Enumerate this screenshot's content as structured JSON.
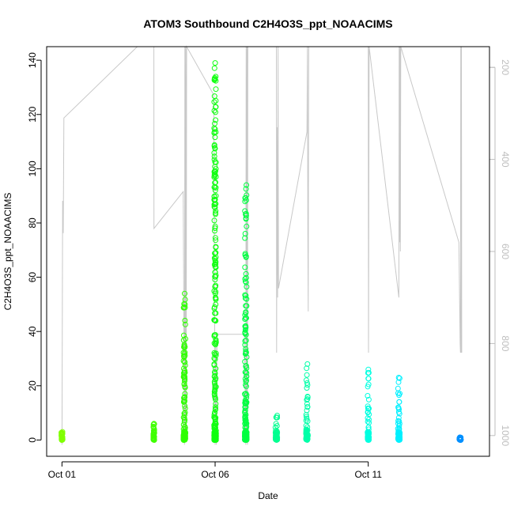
{
  "chart_data": {
    "type": "scatter",
    "title": "ATOM3 Southbound C2H4O3S_ppt_NOAACIMS",
    "xlabel": "Date",
    "ylabel": "C2H4O3S_ppt_NOAACIMS",
    "x_axis": {
      "kind": "date",
      "range": [
        "2017-09-30T12:00",
        "2017-10-14T23:00"
      ],
      "ticks": [
        {
          "value": "2017-10-01",
          "label": "Oct 01"
        },
        {
          "value": "2017-10-06",
          "label": "Oct 06"
        },
        {
          "value": "2017-10-11",
          "label": "Oct 11"
        }
      ]
    },
    "y_axis": {
      "range": [
        -6,
        145
      ],
      "ticks": [
        0,
        20,
        40,
        60,
        80,
        100,
        120,
        140
      ]
    },
    "y2_axis": {
      "label": "",
      "inverted": true,
      "range": [
        1045,
        155
      ],
      "ticks": [
        200,
        400,
        600,
        800,
        1000
      ],
      "color": "#bebebe"
    },
    "grid": false,
    "legend": "none",
    "series": [
      {
        "color_scale": "time (green to blue)",
        "clusters": [
          {
            "date": "2017-10-01T00:00",
            "spread_h": 1.0,
            "max": 3,
            "color": "#80ff00"
          },
          {
            "date": "2017-10-04T00:00",
            "spread_h": 0.8,
            "max": 6,
            "color": "#40ff00"
          },
          {
            "date": "2017-10-05T00:00",
            "spread_h": 1.5,
            "max": 54,
            "color": "#2eff00"
          },
          {
            "date": "2017-10-06T00:00",
            "spread_h": 1.5,
            "max": 139,
            "color": "#10ff10"
          },
          {
            "date": "2017-10-07T00:00",
            "spread_h": 1.5,
            "max": 94,
            "color": "#00ff40"
          },
          {
            "date": "2017-10-08T00:00",
            "spread_h": 1.5,
            "max": 9,
            "color": "#00ff90"
          },
          {
            "date": "2017-10-09T00:00",
            "spread_h": 1.5,
            "max": 28,
            "color": "#00ffa8"
          },
          {
            "date": "2017-10-11T00:00",
            "spread_h": 1.2,
            "max": 26,
            "color": "#00ffe0"
          },
          {
            "date": "2017-10-12T00:00",
            "spread_h": 1.5,
            "max": 23,
            "color": "#00f0ff"
          },
          {
            "date": "2017-10-14T00:00",
            "spread_h": 1.2,
            "max": 1,
            "color": "#0090ff"
          }
        ]
      },
      {
        "axis": "y2",
        "color": "#c8c8c8",
        "points": [
          [
            "2017-10-01T00:00",
            1020
          ],
          [
            "2017-10-01T00:30",
            490
          ],
          [
            "2017-10-01T01:00",
            560
          ],
          [
            "2017-10-01T01:30",
            310
          ],
          [
            "2017-10-03T11:00",
            150
          ],
          [
            "2017-10-04T00:00",
            150
          ],
          [
            "2017-10-04T00:05",
            550
          ],
          [
            "2017-10-04T23:00",
            470
          ],
          [
            "2017-10-05T00:00",
            1020
          ],
          [
            "2017-10-05T00:20",
            150
          ],
          [
            "2017-10-05T00:40",
            990
          ],
          [
            "2017-10-05T01:00",
            150
          ],
          [
            "2017-10-05T01:20",
            1000
          ],
          [
            "2017-10-05T01:40",
            150
          ],
          [
            "2017-10-05T23:00",
            260
          ],
          [
            "2017-10-06T00:00",
            1020
          ],
          [
            "2017-10-06T00:30",
            800
          ],
          [
            "2017-10-06T01:00",
            1020
          ],
          [
            "2017-10-06T01:30",
            780
          ],
          [
            "2017-10-06T23:00",
            780
          ],
          [
            "2017-10-07T00:00",
            1020
          ],
          [
            "2017-10-07T00:20",
            150
          ],
          [
            "2017-10-07T00:40",
            1000
          ],
          [
            "2017-10-07T01:00",
            150
          ],
          [
            "2017-10-07T01:20",
            1020
          ],
          [
            "2017-10-07T01:40",
            150
          ],
          [
            "2017-10-08T00:00",
            150
          ],
          [
            "2017-10-08T00:10",
            820
          ],
          [
            "2017-10-08T00:30",
            330
          ],
          [
            "2017-10-08T01:00",
            700
          ],
          [
            "2017-10-08T01:20",
            150
          ],
          [
            "2017-10-08T01:40",
            680
          ],
          [
            "2017-10-09T00:00",
            340
          ],
          [
            "2017-10-09T00:20",
            150
          ],
          [
            "2017-10-09T00:40",
            560
          ],
          [
            "2017-10-09T01:00",
            730
          ],
          [
            "2017-10-09T01:20",
            150
          ],
          [
            "2017-10-11T00:00",
            150
          ],
          [
            "2017-10-11T00:10",
            820
          ],
          [
            "2017-10-11T00:20",
            700
          ],
          [
            "2017-10-11T00:40",
            150
          ],
          [
            "2017-10-12T00:00",
            700
          ],
          [
            "2017-10-12T00:15",
            150
          ],
          [
            "2017-10-12T00:30",
            580
          ],
          [
            "2017-10-12T00:50",
            150
          ],
          [
            "2017-10-12T01:10",
            600
          ],
          [
            "2017-10-12T01:30",
            150
          ],
          [
            "2017-10-13T23:00",
            580
          ],
          [
            "2017-10-14T00:00",
            800
          ],
          [
            "2017-10-14T00:15",
            820
          ],
          [
            "2017-10-14T00:30",
            150
          ],
          [
            "2017-10-14T00:45",
            820
          ],
          [
            "2017-10-14T01:00",
            150
          ],
          [
            "2017-10-14T01:15",
            820
          ]
        ]
      }
    ]
  }
}
